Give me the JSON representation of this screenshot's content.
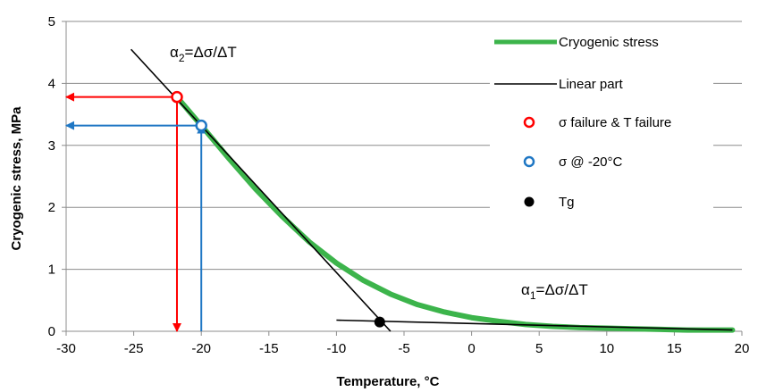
{
  "chart_data": {
    "type": "line",
    "xlabel": "Temperature, °C",
    "ylabel": "Cryogenic stress, MPa",
    "xlim": [
      -30,
      20
    ],
    "ylim": [
      0,
      5
    ],
    "x_ticks": [
      -30,
      -25,
      -20,
      -15,
      -10,
      -5,
      0,
      5,
      10,
      15,
      20
    ],
    "y_ticks": [
      0,
      1,
      2,
      3,
      4,
      5
    ],
    "grid": "horizontal",
    "legend_position": "top-right",
    "colors": {
      "cryogenic": "#3cb44b",
      "linear": "#000000",
      "failure": "#ff0000",
      "at_minus20": "#1f77c4",
      "tg": "#000000"
    },
    "series": [
      {
        "name": "Cryogenic stress",
        "points": [
          {
            "x": -21.8,
            "y": 3.78
          },
          {
            "x": -20,
            "y": 3.32
          },
          {
            "x": -18,
            "y": 2.8
          },
          {
            "x": -16,
            "y": 2.3
          },
          {
            "x": -14,
            "y": 1.85
          },
          {
            "x": -12,
            "y": 1.44
          },
          {
            "x": -10,
            "y": 1.1
          },
          {
            "x": -8,
            "y": 0.82
          },
          {
            "x": -6,
            "y": 0.6
          },
          {
            "x": -4,
            "y": 0.43
          },
          {
            "x": -2,
            "y": 0.31
          },
          {
            "x": 0,
            "y": 0.22
          },
          {
            "x": 2,
            "y": 0.16
          },
          {
            "x": 4,
            "y": 0.11
          },
          {
            "x": 6,
            "y": 0.08
          },
          {
            "x": 8,
            "y": 0.06
          },
          {
            "x": 10,
            "y": 0.05
          },
          {
            "x": 12,
            "y": 0.04
          },
          {
            "x": 14,
            "y": 0.03
          },
          {
            "x": 16,
            "y": 0.02
          },
          {
            "x": 18,
            "y": 0.02
          },
          {
            "x": 19.3,
            "y": 0.02
          }
        ]
      },
      {
        "name": "Linear part",
        "segments": [
          [
            {
              "x": -25.2,
              "y": 4.55
            },
            {
              "x": -6.0,
              "y": 0.0
            }
          ],
          [
            {
              "x": -10.0,
              "y": 0.18
            },
            {
              "x": 19.3,
              "y": 0.02
            }
          ]
        ]
      },
      {
        "name": "σ failure & T failure",
        "points": [
          {
            "x": -21.8,
            "y": 3.78
          }
        ]
      },
      {
        "name": "σ @ -20°C",
        "points": [
          {
            "x": -20,
            "y": 3.32
          }
        ]
      },
      {
        "name": "Tg",
        "points": [
          {
            "x": -6.8,
            "y": 0.15
          }
        ]
      }
    ],
    "annotations": {
      "alpha2": {
        "base": "α",
        "sub": "2",
        "rest": "=Δσ/ΔT"
      },
      "alpha1": {
        "base": "α",
        "sub": "1",
        "rest": "=Δσ/ΔT"
      }
    },
    "arrows": [
      {
        "color": "failure",
        "from": {
          "x": -21.8,
          "y": 3.78
        },
        "to": {
          "x": -30,
          "y": 3.78
        }
      },
      {
        "color": "failure",
        "from": {
          "x": -21.8,
          "y": 3.78
        },
        "to": {
          "x": -21.8,
          "y": 0
        }
      },
      {
        "color": "at_minus20",
        "from": {
          "x": -20,
          "y": 3.32
        },
        "to": {
          "x": -30,
          "y": 3.32
        }
      },
      {
        "color": "at_minus20",
        "from": {
          "x": -20,
          "y": 0
        },
        "to": {
          "x": -20,
          "y": 3.32
        }
      }
    ]
  }
}
